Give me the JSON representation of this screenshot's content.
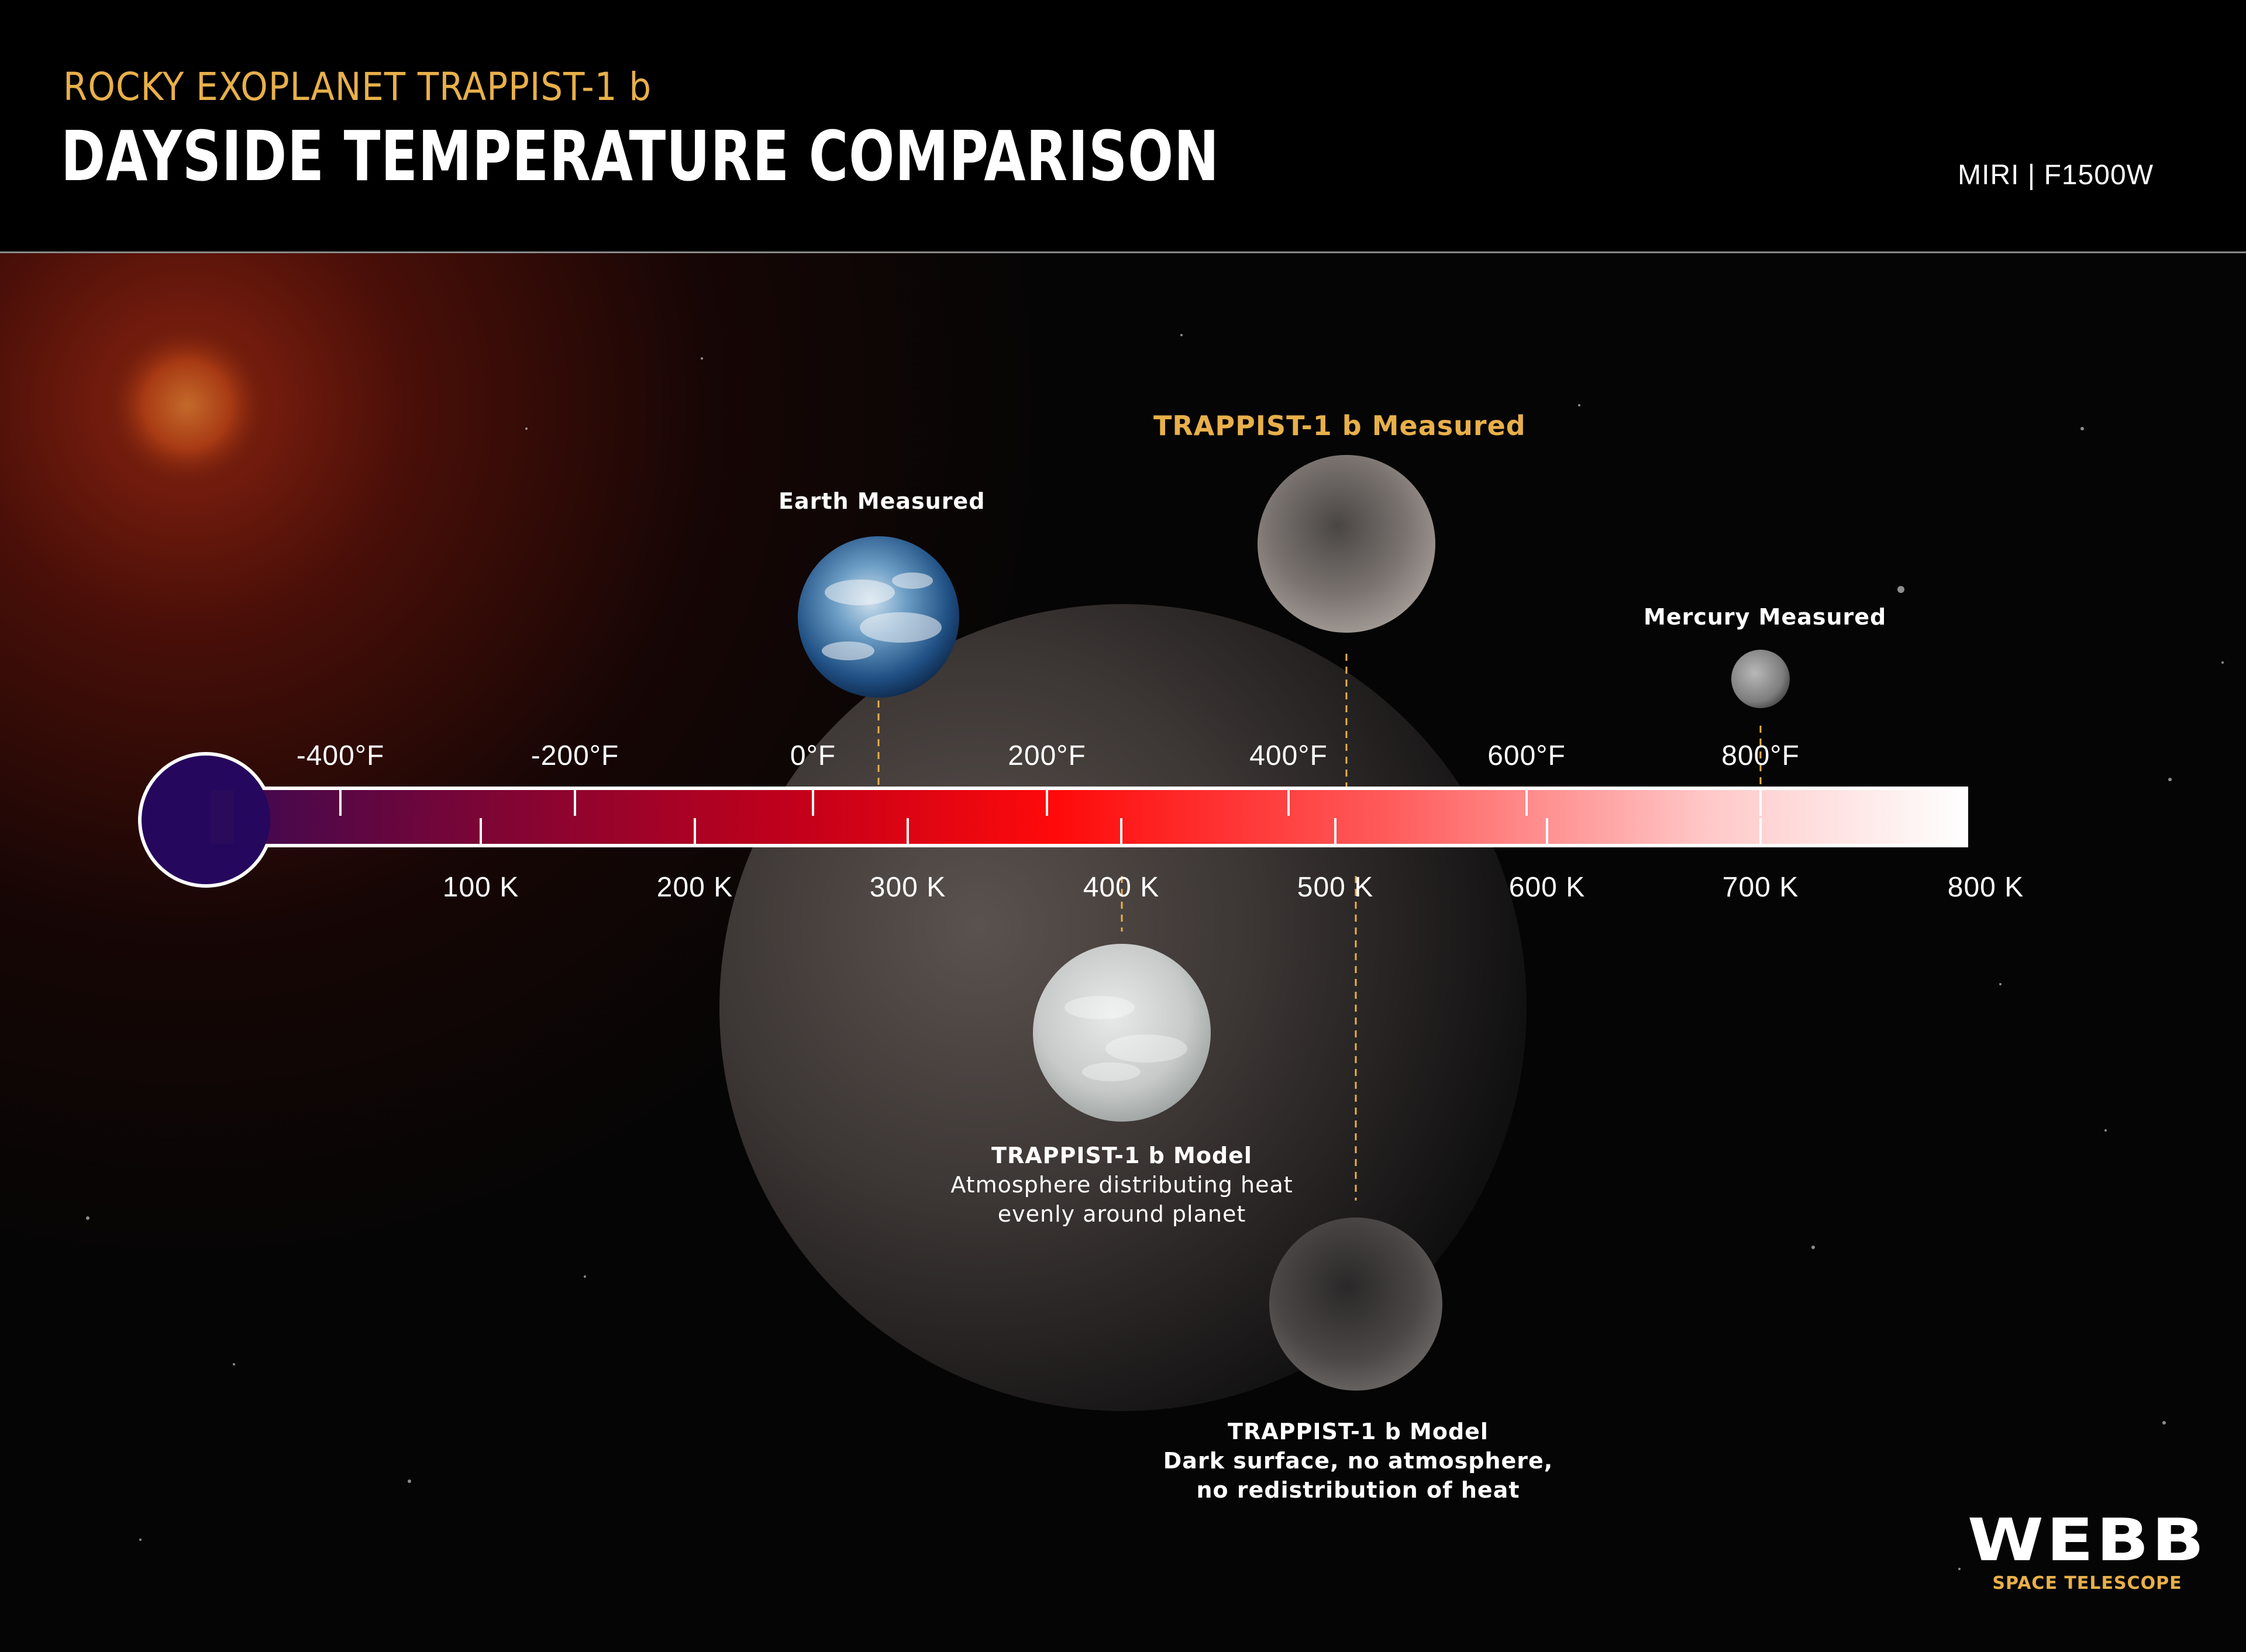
{
  "header": {
    "subtitle": "ROCKY EXOPLANET TRAPPIST-1 b",
    "title": "DAYSIDE TEMPERATURE COMPARISON",
    "instrument": "MIRI | F1500W"
  },
  "colors": {
    "accent_gold": "#e8b04a",
    "bulb": "#25075e",
    "gradient_stops": [
      "#2a0a5a",
      "#7a0536",
      "#c4001a",
      "#ff0a0a",
      "#ff5a5a",
      "#ffc9c9",
      "#ffffff"
    ]
  },
  "scale": {
    "fahrenheit_ticks": [
      "-400°F",
      "-200°F",
      "0°F",
      "200°F",
      "400°F",
      "600°F",
      "800°F"
    ],
    "kelvin_ticks": [
      "100 K",
      "200 K",
      "300 K",
      "400 K",
      "500 K",
      "600 K",
      "700 K",
      "800 K"
    ]
  },
  "planets": {
    "earth": {
      "label": "Earth Measured",
      "icon": "earth-icon"
    },
    "trappist_measured": {
      "label": "TRAPPIST-1 b Measured",
      "icon": "rocky-planet-icon"
    },
    "mercury": {
      "label": "Mercury Measured",
      "icon": "mercury-icon"
    },
    "model_atmosphere": {
      "title": "TRAPPIST-1 b Model",
      "line1": "Atmosphere distributing heat",
      "line2": "evenly around planet",
      "icon": "cloudy-planet-icon"
    },
    "model_dark": {
      "title": "TRAPPIST-1 b Model",
      "line1": "Dark surface, no atmosphere,",
      "line2": "no redistribution of heat",
      "icon": "dark-planet-icon"
    }
  },
  "logo": {
    "word": "WEBB",
    "sub": "SPACE TELESCOPE"
  }
}
